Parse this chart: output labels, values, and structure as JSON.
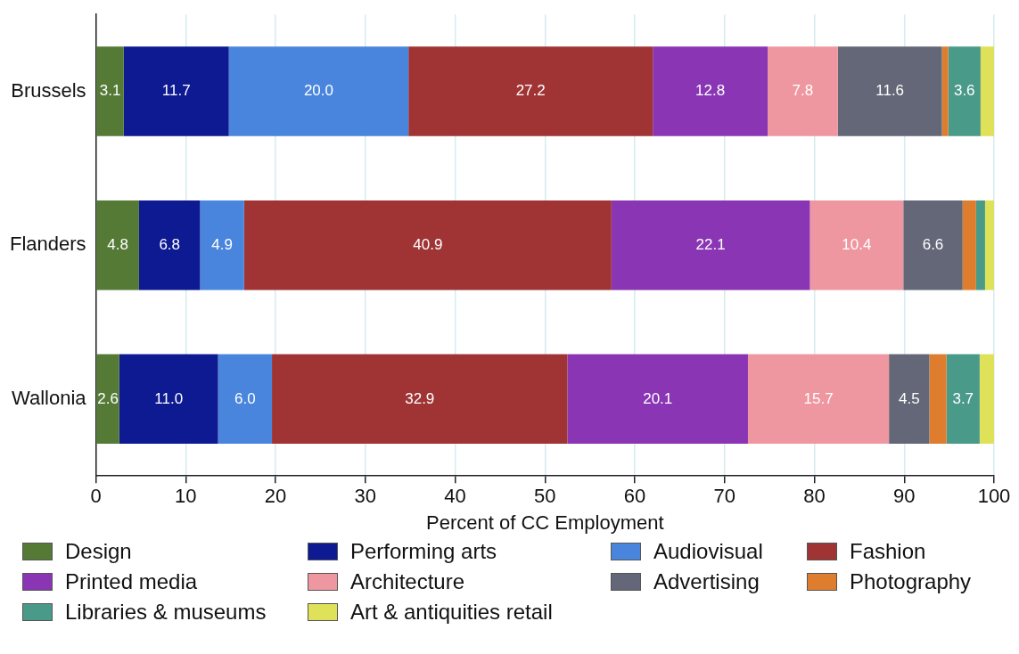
{
  "chart_data": {
    "type": "bar",
    "orientation": "horizontal",
    "stacked": true,
    "categories": [
      "Brussels",
      "Flanders",
      "Wallonia"
    ],
    "xlabel": "Percent of CC Employment",
    "xlim": [
      0,
      100
    ],
    "xticks": [
      0,
      10,
      20,
      30,
      40,
      50,
      60,
      70,
      80,
      90,
      100
    ],
    "grid": "x",
    "legend": "bottom",
    "series": [
      {
        "name": "Design",
        "color": "#557a36",
        "values": [
          3.1,
          4.8,
          2.6
        ],
        "value_labels": [
          "3.1",
          "4.8",
          "2.6"
        ]
      },
      {
        "name": "Performing arts",
        "color": "#0d1a91",
        "values": [
          11.7,
          6.8,
          11.0
        ],
        "value_labels": [
          "11.7",
          "6.8",
          "11.0"
        ]
      },
      {
        "name": "Audiovisual",
        "color": "#4a85dd",
        "values": [
          20.0,
          4.9,
          6.0
        ],
        "value_labels": [
          "20.0",
          "4.9",
          "6.0"
        ]
      },
      {
        "name": "Fashion",
        "color": "#a03434",
        "values": [
          27.2,
          40.9,
          32.9
        ],
        "value_labels": [
          "27.2",
          "40.9",
          "32.9"
        ]
      },
      {
        "name": "Printed media",
        "color": "#8a36b4",
        "values": [
          12.8,
          22.1,
          20.1
        ],
        "value_labels": [
          "12.8",
          "22.1",
          "20.1"
        ]
      },
      {
        "name": "Architecture",
        "color": "#ef97a0",
        "values": [
          7.8,
          10.4,
          15.7
        ],
        "value_labels": [
          "7.8",
          "10.4",
          "15.7"
        ]
      },
      {
        "name": "Advertising",
        "color": "#636777",
        "values": [
          11.6,
          6.6,
          4.5
        ],
        "value_labels": [
          "11.6",
          "6.6",
          "4.5"
        ]
      },
      {
        "name": "Photography",
        "color": "#df7d2e",
        "values": [
          0.7,
          1.5,
          1.9
        ],
        "value_labels": [
          null,
          null,
          null
        ]
      },
      {
        "name": "Libraries & museums",
        "color": "#4a9a8a",
        "values": [
          3.6,
          1.0,
          3.7
        ],
        "value_labels": [
          "3.6",
          null,
          "3.7"
        ]
      },
      {
        "name": "Art & antiquities retail",
        "color": "#dfe158",
        "values": [
          1.5,
          1.0,
          1.6
        ],
        "value_labels": [
          null,
          null,
          null
        ]
      }
    ]
  }
}
